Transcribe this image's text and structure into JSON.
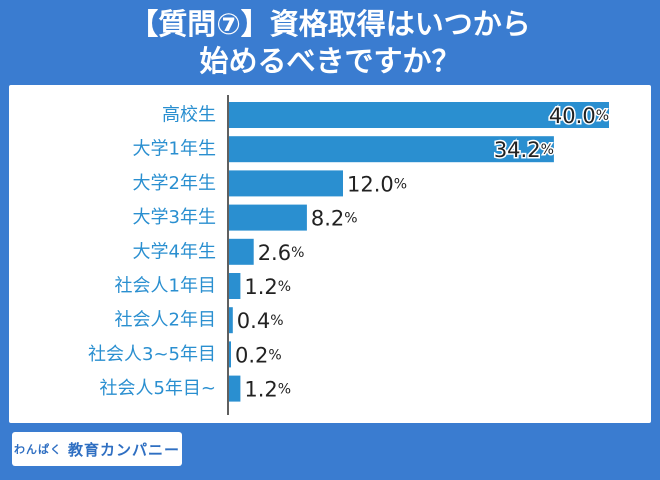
{
  "title_line1": "【質問⑦】資格取得はいつから",
  "title_line2": "始めるべきですか？",
  "footer": {
    "logo_small": "わんぱく",
    "logo_main": "教育カンパニー"
  },
  "colors": {
    "background": "#3a7cd0",
    "bar": "#2a8fd0",
    "label": "#2a8fd0",
    "value": "#222222"
  },
  "chart_data": {
    "type": "bar",
    "orientation": "horizontal",
    "categories": [
      "高校生",
      "大学1年生",
      "大学2年生",
      "大学3年生",
      "大学4年生",
      "社会人1年目",
      "社会人2年目",
      "社会人3~5年目",
      "社会人5年目~"
    ],
    "values": [
      40.0,
      34.2,
      12.0,
      8.2,
      2.6,
      1.2,
      0.4,
      0.2,
      1.2
    ],
    "value_labels": [
      "40.0",
      "34.2",
      "12.0",
      "8.2",
      "2.6",
      "1.2",
      "0.4",
      "0.2",
      "1.2"
    ],
    "unit": "%",
    "xlim": [
      0,
      40
    ],
    "grid": false,
    "legend": "none"
  }
}
